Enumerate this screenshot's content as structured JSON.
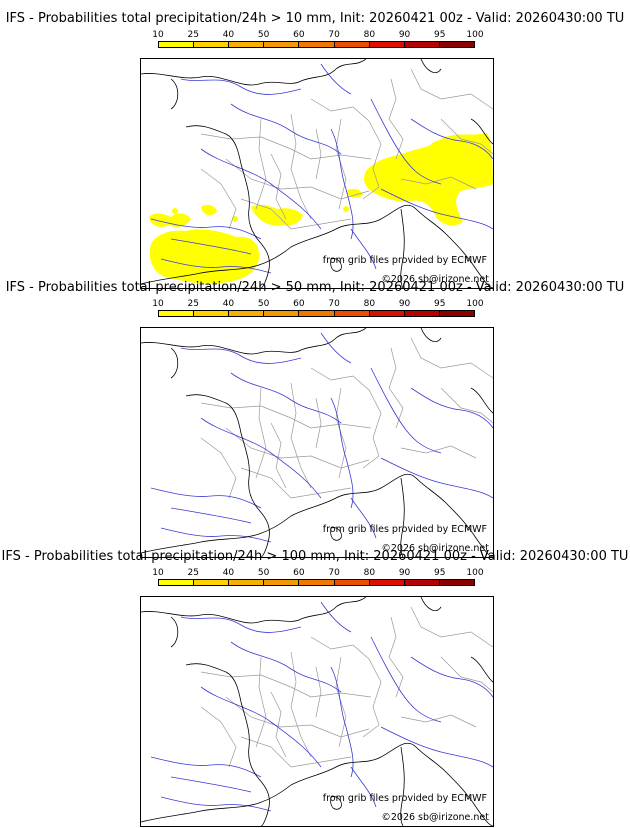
{
  "panels": [
    {
      "title": "IFS - Probabilities total precipitation/24h > 10 mm, Init: 20260421 00z - Valid: 20260430:00 TU",
      "has_precip": true
    },
    {
      "title": "IFS - Probabilities total precipitation/24h > 50 mm, Init: 20260421 00z - Valid: 20260430:00 TU",
      "has_precip": false
    },
    {
      "title": "IFS - Probabilities total precipitation/24h > 100 mm, Init: 20260421 00z - Valid: 20260430:00 TU",
      "has_precip": false
    }
  ],
  "colorbar": {
    "ticks": [
      "10",
      "25",
      "40",
      "50",
      "60",
      "70",
      "80",
      "90",
      "95",
      "100"
    ],
    "colors": [
      "#ffff00",
      "#ffd200",
      "#f5b000",
      "#f29a00",
      "#f07800",
      "#ec4d00",
      "#dc1000",
      "#b80000",
      "#8c0000",
      "#4a0000"
    ]
  },
  "credits": {
    "source": "from grib files provided by ECMWF",
    "copyright": "©2026 sb@irizone.net"
  }
}
